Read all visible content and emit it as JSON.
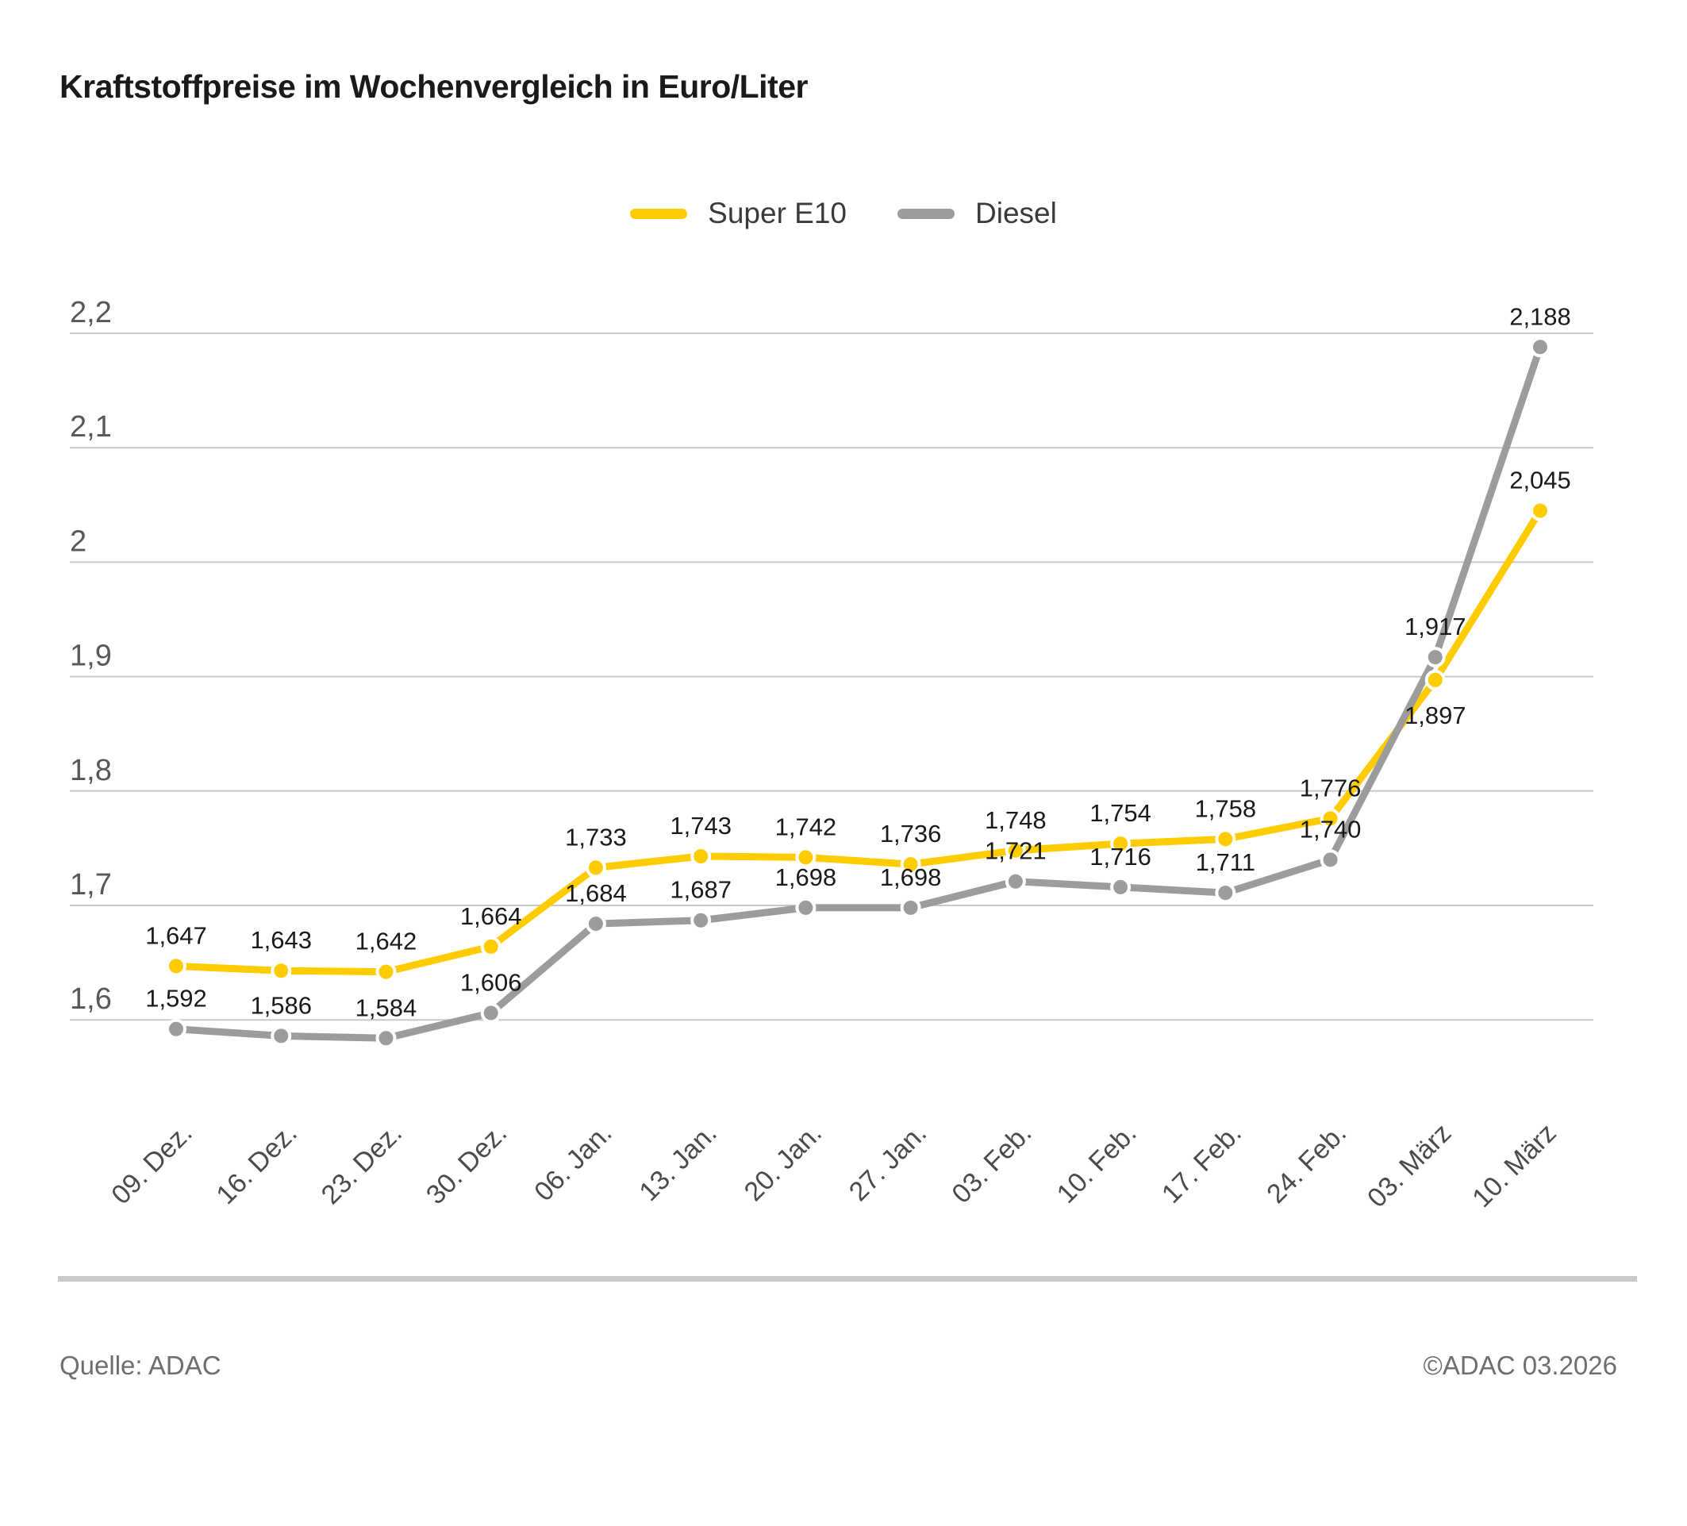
{
  "title": "Kraftstoffpreise im Wochenvergleich in Euro/Liter",
  "footer": {
    "source": "Quelle: ADAC",
    "copyright": "©ADAC 03.2026"
  },
  "colors": {
    "super_e10": "#FFCC00",
    "diesel": "#9C9C9C",
    "gridline": "#C8C8C8",
    "y_tick_label": "#58585A",
    "x_axis_label": "#4B4B4B",
    "data_label": "#1A1A1A",
    "title_text": "#1A1A1A",
    "footer_text": "#6E6E6E"
  },
  "chart_data": {
    "type": "line",
    "title": "Kraftstoffpreise im Wochenvergleich in Euro/Liter",
    "xlabel": "",
    "ylabel": "Euro/Liter",
    "grid": true,
    "legend_position": "top-center",
    "value_format": "german decimal comma, 3 decimals",
    "ylim": [
      1.55,
      2.25
    ],
    "categories": [
      "09. Dez.",
      "16. Dez.",
      "23. Dez.",
      "30. Dez.",
      "06. Jan.",
      "13. Jan.",
      "20. Jan.",
      "27. Jan.",
      "03. Feb.",
      "10. Feb.",
      "17. Feb.",
      "24. Feb.",
      "03. März",
      "10. März"
    ],
    "y_ticks": [
      {
        "value": 2.2,
        "label": "2,2"
      },
      {
        "value": 2.1,
        "label": "2,1"
      },
      {
        "value": 2.0,
        "label": "2"
      },
      {
        "value": 1.9,
        "label": "1,9"
      },
      {
        "value": 1.8,
        "label": "1,8"
      },
      {
        "value": 1.7,
        "label": "1,7"
      },
      {
        "value": 1.6,
        "label": "1,6"
      }
    ],
    "series": [
      {
        "name": "Super E10",
        "color": "#FFCC00",
        "values": [
          1.647,
          1.643,
          1.642,
          1.664,
          1.733,
          1.743,
          1.742,
          1.736,
          1.748,
          1.754,
          1.758,
          1.776,
          1.897,
          2.045
        ],
        "labels_below_indices": [
          12
        ]
      },
      {
        "name": "Diesel",
        "color": "#9C9C9C",
        "values": [
          1.592,
          1.586,
          1.584,
          1.606,
          1.684,
          1.687,
          1.698,
          1.698,
          1.721,
          1.716,
          1.711,
          1.74,
          1.917,
          2.188
        ],
        "labels_below_indices": []
      }
    ]
  }
}
